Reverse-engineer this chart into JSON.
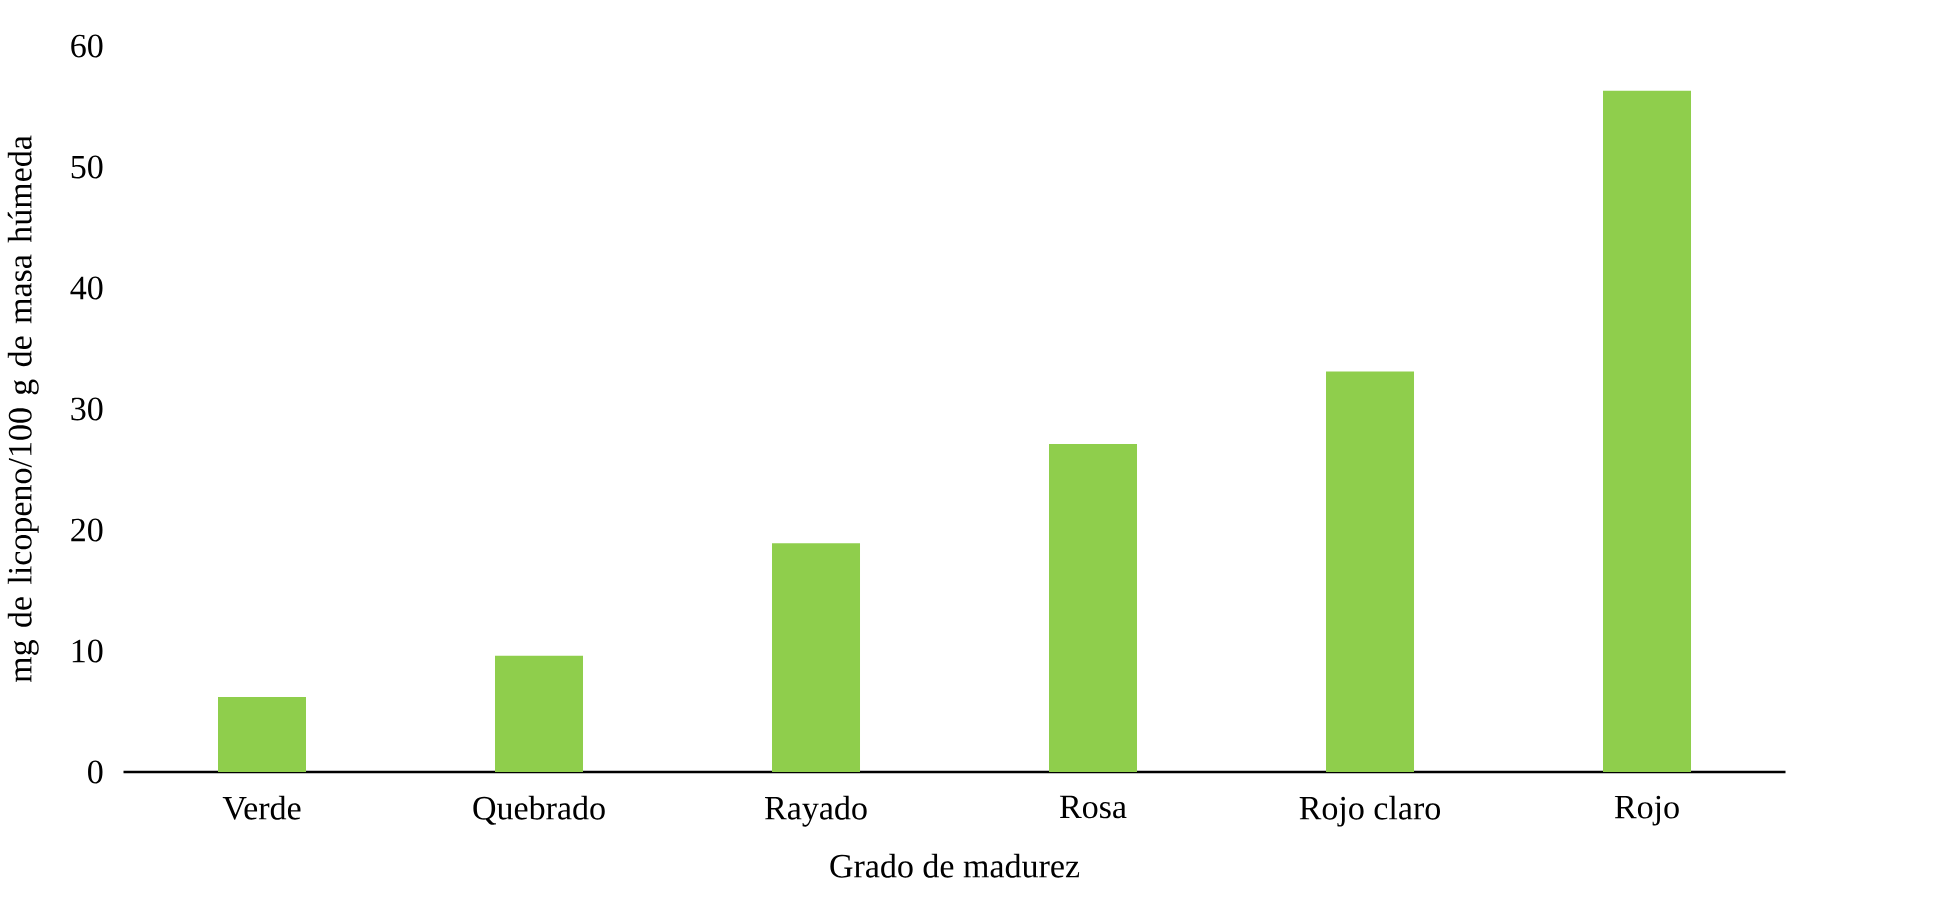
{
  "chart_data": {
    "type": "bar",
    "xlabel": "Grado de madurez",
    "ylabel": "mg de licopeno/100 g de masa húmeda",
    "categories": [
      "Verde",
      "Quebrado",
      "Rayado",
      "Rosa",
      "Rojo claro",
      "Rojo"
    ],
    "values": [
      6.2,
      9.6,
      18.9,
      27.1,
      33.1,
      56.3
    ],
    "color": "#8fce4c",
    "ylim": [
      0,
      60
    ],
    "yticks": [
      0,
      10,
      20,
      30,
      40,
      50,
      60
    ]
  }
}
